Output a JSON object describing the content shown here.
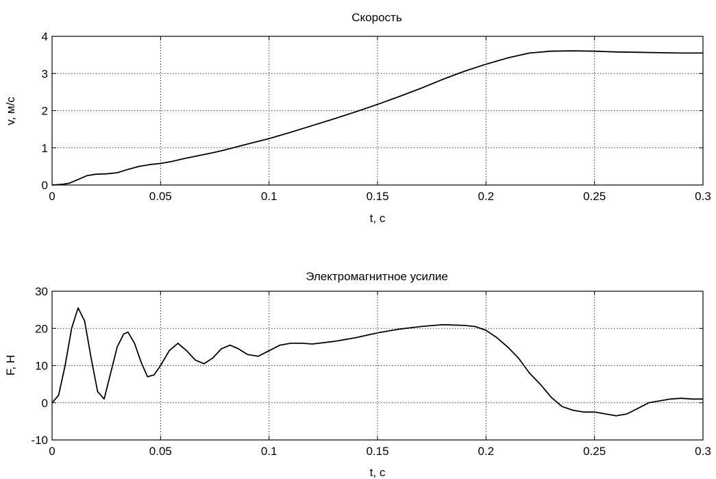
{
  "chart_data": [
    {
      "type": "line",
      "title": "Скорость",
      "xlabel": "t, c",
      "ylabel": "v, м/с",
      "xlim": [
        0,
        0.3
      ],
      "ylim": [
        0,
        4
      ],
      "xticks": [
        "0",
        "0.05",
        "0.1",
        "0.15",
        "0.2",
        "0.25",
        "0.3"
      ],
      "yticks": [
        "0",
        "1",
        "2",
        "3",
        "4"
      ],
      "grid": true,
      "series": [
        {
          "x": [
            0,
            0.005,
            0.008,
            0.012,
            0.016,
            0.02,
            0.025,
            0.03,
            0.035,
            0.04,
            0.045,
            0.05,
            0.055,
            0.06,
            0.065,
            0.07,
            0.075,
            0.08,
            0.09,
            0.1,
            0.11,
            0.12,
            0.13,
            0.14,
            0.15,
            0.16,
            0.17,
            0.18,
            0.19,
            0.2,
            0.21,
            0.22,
            0.23,
            0.24,
            0.25,
            0.26,
            0.27,
            0.28,
            0.29,
            0.3
          ],
          "y": [
            0,
            0.02,
            0.05,
            0.15,
            0.25,
            0.29,
            0.3,
            0.33,
            0.42,
            0.5,
            0.55,
            0.58,
            0.63,
            0.7,
            0.76,
            0.82,
            0.88,
            0.95,
            1.1,
            1.25,
            1.42,
            1.6,
            1.78,
            1.97,
            2.17,
            2.38,
            2.6,
            2.84,
            3.06,
            3.25,
            3.42,
            3.55,
            3.6,
            3.61,
            3.6,
            3.58,
            3.57,
            3.56,
            3.55,
            3.55
          ]
        }
      ]
    },
    {
      "type": "line",
      "title": "Электромагнитное усилие",
      "xlabel": "t, c",
      "ylabel": "F, H",
      "xlim": [
        0,
        0.3
      ],
      "ylim": [
        -10,
        30
      ],
      "xticks": [
        "0",
        "0.05",
        "0.1",
        "0.15",
        "0.2",
        "0.25",
        "0.3"
      ],
      "yticks": [
        "-10",
        "0",
        "10",
        "20",
        "30"
      ],
      "grid": true,
      "series": [
        {
          "x": [
            0,
            0.003,
            0.006,
            0.009,
            0.012,
            0.015,
            0.018,
            0.021,
            0.024,
            0.027,
            0.03,
            0.033,
            0.035,
            0.038,
            0.041,
            0.044,
            0.047,
            0.05,
            0.054,
            0.058,
            0.062,
            0.066,
            0.07,
            0.074,
            0.078,
            0.082,
            0.086,
            0.09,
            0.095,
            0.1,
            0.105,
            0.11,
            0.115,
            0.12,
            0.13,
            0.14,
            0.15,
            0.16,
            0.17,
            0.18,
            0.19,
            0.195,
            0.2,
            0.205,
            0.21,
            0.215,
            0.22,
            0.225,
            0.23,
            0.235,
            0.24,
            0.245,
            0.25,
            0.255,
            0.26,
            0.265,
            0.27,
            0.275,
            0.28,
            0.285,
            0.29,
            0.295,
            0.3
          ],
          "y": [
            0,
            2,
            10,
            20,
            25.5,
            22,
            12,
            3,
            1,
            8,
            15,
            18.5,
            19,
            16,
            11,
            7,
            7.5,
            10,
            14,
            16,
            14,
            11.5,
            10.5,
            12,
            14.5,
            15.5,
            14.5,
            13,
            12.5,
            14,
            15.5,
            16,
            16,
            15.8,
            16.5,
            17.5,
            18.8,
            19.8,
            20.5,
            21,
            20.8,
            20.5,
            19.5,
            17.5,
            15,
            12,
            8,
            5,
            1.5,
            -1,
            -2,
            -2.5,
            -2.5,
            -3,
            -3.5,
            -3,
            -1.5,
            0,
            0.5,
            1,
            1.2,
            1,
            1
          ]
        }
      ]
    }
  ]
}
